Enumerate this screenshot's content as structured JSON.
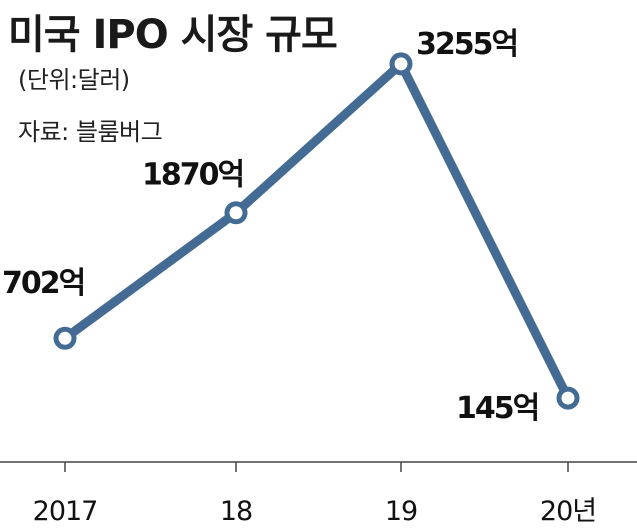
{
  "header": {
    "title": "미국 IPO 시장 규모",
    "unit": "(단위:달러)",
    "source": "자료: 블룸버그"
  },
  "chart_data": {
    "type": "line",
    "title": "미국 IPO 시장 규모",
    "unit": "(단위:달러)",
    "source": "자료: 블룸버그",
    "categories": [
      "2017",
      "18",
      "19",
      "20년"
    ],
    "values": [
      702,
      1870,
      3255,
      145
    ],
    "data_labels": [
      "702억",
      "1870억",
      "3255억",
      "145억"
    ],
    "ylim": [
      -450,
      3850
    ],
    "grid": false,
    "legend": "none",
    "line_color": "#436b93",
    "marker_fill": "#ffffff",
    "axis_color": "#444444"
  }
}
